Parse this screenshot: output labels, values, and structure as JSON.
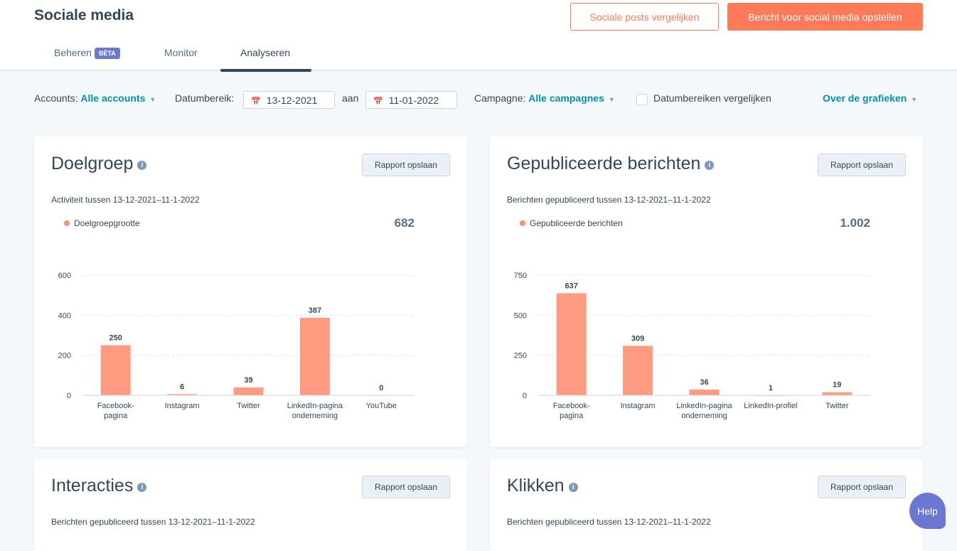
{
  "header": {
    "title": "Sociale media",
    "compare_button": "Sociale posts vergelijken",
    "create_button": "Bericht voor social media opstellen"
  },
  "tabs": [
    {
      "label": "Beheren",
      "badge": "BÈTA"
    },
    {
      "label": "Monitor"
    },
    {
      "label": "Analyseren",
      "active": true
    }
  ],
  "filters": {
    "accounts_label": "Accounts:",
    "accounts_value": "Alle accounts",
    "date_label": "Datumbereik:",
    "date_from": "13-12-2021",
    "to_label": "aan",
    "date_to": "11-01-2022",
    "campaign_label": "Campagne:",
    "campaign_value": "Alle campagnes",
    "compare_label": "Datumbereiken vergelijken",
    "about_label": "Over de grafieken"
  },
  "save_label": "Rapport opslaan",
  "help_label": "Help",
  "chart_data": [
    {
      "type": "bar",
      "title": "Doelgroep",
      "subtitle": "Activiteit tussen 13-12-2021–11-1-2022",
      "legend": "Doelgroepgrootte",
      "total": "682",
      "categories": [
        [
          "Facebook-",
          "pagina"
        ],
        [
          "Instagram"
        ],
        [
          "Twitter"
        ],
        [
          "LinkedIn-pagina",
          "onderneming"
        ],
        [
          "YouTube"
        ]
      ],
      "values": [
        250,
        6,
        39,
        387,
        0
      ],
      "yticks": [
        0,
        200,
        400,
        600
      ],
      "ylim": [
        0,
        600
      ],
      "color": "#ff9b80"
    },
    {
      "type": "bar",
      "title": "Gepubliceerde berichten",
      "subtitle": "Berichten gepubliceerd tussen 13-12-2021–11-1-2022",
      "legend": "Gepubliceerde berichten",
      "total": "1.002",
      "categories": [
        [
          "Facebook-",
          "pagina"
        ],
        [
          "Instagram"
        ],
        [
          "LinkedIn-pagina",
          "onderneming"
        ],
        [
          "LinkedIn-profiel"
        ],
        [
          "Twitter"
        ]
      ],
      "values": [
        637,
        309,
        36,
        1,
        19
      ],
      "yticks": [
        0,
        250,
        500,
        750
      ],
      "ylim": [
        0,
        750
      ],
      "color": "#ff9b80"
    }
  ],
  "lower_cards": [
    {
      "title": "Interacties",
      "subtitle": "Berichten gepubliceerd tussen 13-12-2021–11-1-2022"
    },
    {
      "title": "Klikken",
      "subtitle": "Berichten gepubliceerd tussen 13-12-2021–11-1-2022"
    }
  ]
}
